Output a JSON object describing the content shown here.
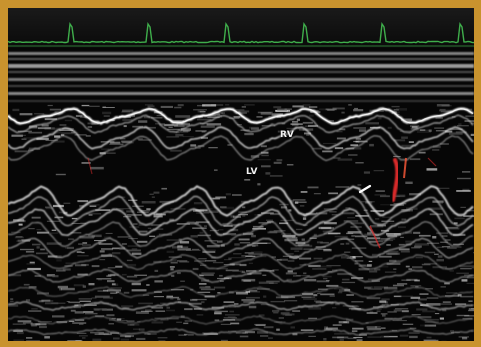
{
  "image": {
    "kind": "m-mode echocardiogram",
    "colors": {
      "frame": "#c9932e",
      "ecg_trace": "#3fae4b",
      "color_doppler": "#d92a2a",
      "tissue": "#e6e6e6",
      "background": "#050505"
    }
  },
  "labels": {
    "upper": "RV",
    "lower": "LV"
  }
}
